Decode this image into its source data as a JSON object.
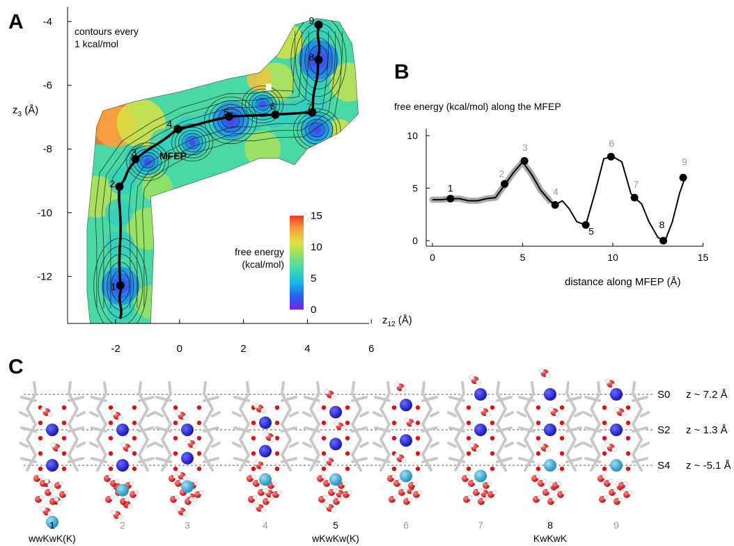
{
  "panels": {
    "a": {
      "letter": "A"
    },
    "b": {
      "letter": "B"
    },
    "c": {
      "letter": "C"
    }
  },
  "colors": {
    "path": "#000000",
    "highlight_label": "#000000",
    "muted_label": "#999999",
    "ion_dark": "#1b1bd6",
    "ion_light": "#2aa0cc",
    "oxygen": "#e01010",
    "stick": "#c8c8c8",
    "band": "#9a9a9a"
  },
  "chart_data": [
    {
      "type": "heatmap",
      "panel": "A",
      "annotation": "contours every\n1 kcal/mol",
      "path_label": "MFEP",
      "xlabel": "z12 (Å)",
      "ylabel": "z3 (Å)",
      "xlim": [
        -3.5,
        6
      ],
      "ylim": [
        -13.6,
        -4
      ],
      "xticks": [
        -2,
        0,
        2,
        4,
        6
      ],
      "yticks": [
        -4,
        -6,
        -8,
        -10,
        -12
      ],
      "colorbar": {
        "label": "free energy\n(kcal/mol)",
        "ticks": [
          15,
          10,
          5,
          0
        ],
        "range": [
          0,
          15
        ],
        "colors": [
          "#7a1fe0",
          "#2563f0",
          "#18b8e8",
          "#3fd8b0",
          "#8ae068",
          "#e0e040",
          "#f8a040",
          "#f03820"
        ]
      },
      "minima": [
        {
          "x": -1.85,
          "y": -12.3,
          "depth": 0.9
        },
        {
          "x": 1.6,
          "y": -7.1,
          "depth": 0.85
        },
        {
          "x": 4.35,
          "y": -5.2,
          "depth": 1.0
        },
        {
          "x": 4.3,
          "y": -7.4,
          "depth": 0.6
        },
        {
          "x": -1.0,
          "y": -8.4,
          "depth": 0.35
        },
        {
          "x": 0.4,
          "y": -7.8,
          "depth": 0.3
        },
        {
          "x": 2.6,
          "y": -6.6,
          "depth": 0.3
        }
      ],
      "path_points": [
        {
          "label": "1",
          "x": -1.85,
          "y": -12.28
        },
        {
          "label": "2",
          "x": -1.88,
          "y": -9.18
        },
        {
          "label": "3",
          "x": -1.38,
          "y": -8.32
        },
        {
          "label": "4",
          "x": -0.05,
          "y": -7.38
        },
        {
          "label": "5",
          "x": 1.55,
          "y": -6.98
        },
        {
          "label": "6",
          "x": 3.0,
          "y": -6.92
        },
        {
          "label": "7",
          "x": 4.15,
          "y": -6.85
        },
        {
          "label": "8",
          "x": 4.35,
          "y": -5.2
        },
        {
          "label": "9",
          "x": 4.35,
          "y": -4.1
        }
      ]
    },
    {
      "type": "line",
      "panel": "B",
      "title": "free energy (kcal/mol) along the MFEP",
      "xlabel": "distance along MFEP (Å)",
      "ylabel": "",
      "xlim": [
        0,
        15
      ],
      "ylim": [
        0,
        10
      ],
      "xticks": [
        0,
        5,
        10,
        15
      ],
      "yticks": [
        0,
        5,
        10
      ],
      "series": [
        {
          "x": [
            0,
            0.5,
            1.0,
            1.5,
            2.0,
            2.5,
            3.0,
            3.5,
            4.0,
            4.5,
            5.0,
            5.5,
            6.0,
            6.5,
            6.8,
            7.2,
            7.6,
            8.0,
            8.5,
            9.0,
            9.5,
            10.0,
            10.5,
            11.0,
            11.2,
            11.6,
            12.0,
            12.5,
            12.9,
            13.3,
            13.7,
            14.0
          ],
          "y": [
            3.9,
            3.9,
            4.0,
            4.0,
            3.8,
            3.8,
            4.0,
            4.1,
            5.3,
            6.5,
            7.5,
            6.3,
            4.8,
            3.8,
            3.4,
            3.8,
            3.0,
            1.8,
            1.5,
            4.5,
            7.8,
            8.0,
            7.5,
            4.5,
            4.1,
            3.5,
            1.8,
            0.3,
            0.0,
            1.8,
            4.5,
            6.0
          ]
        }
      ],
      "points": [
        {
          "label": "1",
          "x": 1.0,
          "y": 4.0,
          "emph": true
        },
        {
          "label": "2",
          "x": 4.0,
          "y": 5.4,
          "emph": false
        },
        {
          "label": "3",
          "x": 5.1,
          "y": 7.6,
          "emph": false
        },
        {
          "label": "4",
          "x": 6.8,
          "y": 3.4,
          "emph": false
        },
        {
          "label": "5",
          "x": 8.5,
          "y": 1.5,
          "emph": true
        },
        {
          "label": "6",
          "x": 9.9,
          "y": 8.0,
          "emph": false
        },
        {
          "label": "7",
          "x": 11.2,
          "y": 4.1,
          "emph": false
        },
        {
          "label": "8",
          "x": 12.8,
          "y": 0.0,
          "emph": true
        },
        {
          "label": "9",
          "x": 13.9,
          "y": 6.0,
          "emph": false
        }
      ]
    }
  ],
  "structures": {
    "sites": [
      {
        "name": "S0",
        "z": "z ~ 7.2 Å"
      },
      {
        "name": "S2",
        "z": "z ~ 1.3 Å"
      },
      {
        "name": "S4",
        "z": "z ~ -5.1 Å"
      }
    ],
    "states": [
      {
        "num": "1",
        "name": "wwKwK(K)",
        "emph": true,
        "ions": [
          {
            "level": 1,
            "kind": "dark"
          },
          {
            "level": 2,
            "kind": "dark"
          },
          {
            "level": 3.6,
            "kind": "light"
          }
        ],
        "waters": [
          0.5,
          1.5,
          2.5,
          3.0,
          3.3
        ]
      },
      {
        "num": "2",
        "name": "",
        "emph": false,
        "ions": [
          {
            "level": 1,
            "kind": "dark"
          },
          {
            "level": 2,
            "kind": "dark"
          },
          {
            "level": 2.7,
            "kind": "light"
          }
        ],
        "waters": [
          0.6,
          1.5,
          2.6,
          3.1,
          3.4
        ]
      },
      {
        "num": "3",
        "name": "",
        "emph": false,
        "ions": [
          {
            "level": 1,
            "kind": "dark"
          },
          {
            "level": 1.8,
            "kind": "dark"
          },
          {
            "level": 2.6,
            "kind": "light"
          }
        ],
        "waters": [
          0.6,
          1.4,
          2.3,
          2.9,
          3.3
        ]
      },
      {
        "num": "4",
        "name": "",
        "emph": false,
        "ions": [
          {
            "level": 0.8,
            "kind": "dark"
          },
          {
            "level": 1.6,
            "kind": "dark"
          },
          {
            "level": 2.4,
            "kind": "light"
          }
        ],
        "waters": [
          0.4,
          1.2,
          2.0,
          2.8,
          3.2
        ]
      },
      {
        "num": "5",
        "name": "wKwKw(K)",
        "emph": true,
        "ions": [
          {
            "level": 0.5,
            "kind": "dark"
          },
          {
            "level": 1.4,
            "kind": "dark"
          },
          {
            "level": 2.4,
            "kind": "light"
          }
        ],
        "waters": [
          0.0,
          0.9,
          1.9,
          2.8,
          3.2
        ]
      },
      {
        "num": "6",
        "name": "",
        "emph": false,
        "ions": [
          {
            "level": 0.3,
            "kind": "dark"
          },
          {
            "level": 1.3,
            "kind": "dark"
          },
          {
            "level": 2.3,
            "kind": "light"
          }
        ],
        "waters": [
          -0.2,
          0.8,
          1.8,
          2.7
        ]
      },
      {
        "num": "7",
        "name": "",
        "emph": false,
        "ions": [
          {
            "level": 0.0,
            "kind": "dark"
          },
          {
            "level": 1.0,
            "kind": "dark"
          },
          {
            "level": 2.3,
            "kind": "light"
          }
        ],
        "waters": [
          -0.4,
          0.5,
          1.5,
          2.8
        ]
      },
      {
        "num": "8",
        "name": "KwKwK",
        "emph": true,
        "ions": [
          {
            "level": 0.0,
            "kind": "dark"
          },
          {
            "level": 1.0,
            "kind": "dark"
          },
          {
            "level": 2.0,
            "kind": "light"
          }
        ],
        "waters": [
          -0.6,
          0.5,
          1.5,
          2.6
        ]
      },
      {
        "num": "9",
        "name": "",
        "emph": false,
        "ions": [
          {
            "level": 0.0,
            "kind": "dark"
          },
          {
            "level": 1.0,
            "kind": "dark"
          },
          {
            "level": 2.0,
            "kind": "light"
          }
        ],
        "waters": [
          -0.3,
          0.5,
          1.5,
          2.6
        ]
      }
    ]
  }
}
